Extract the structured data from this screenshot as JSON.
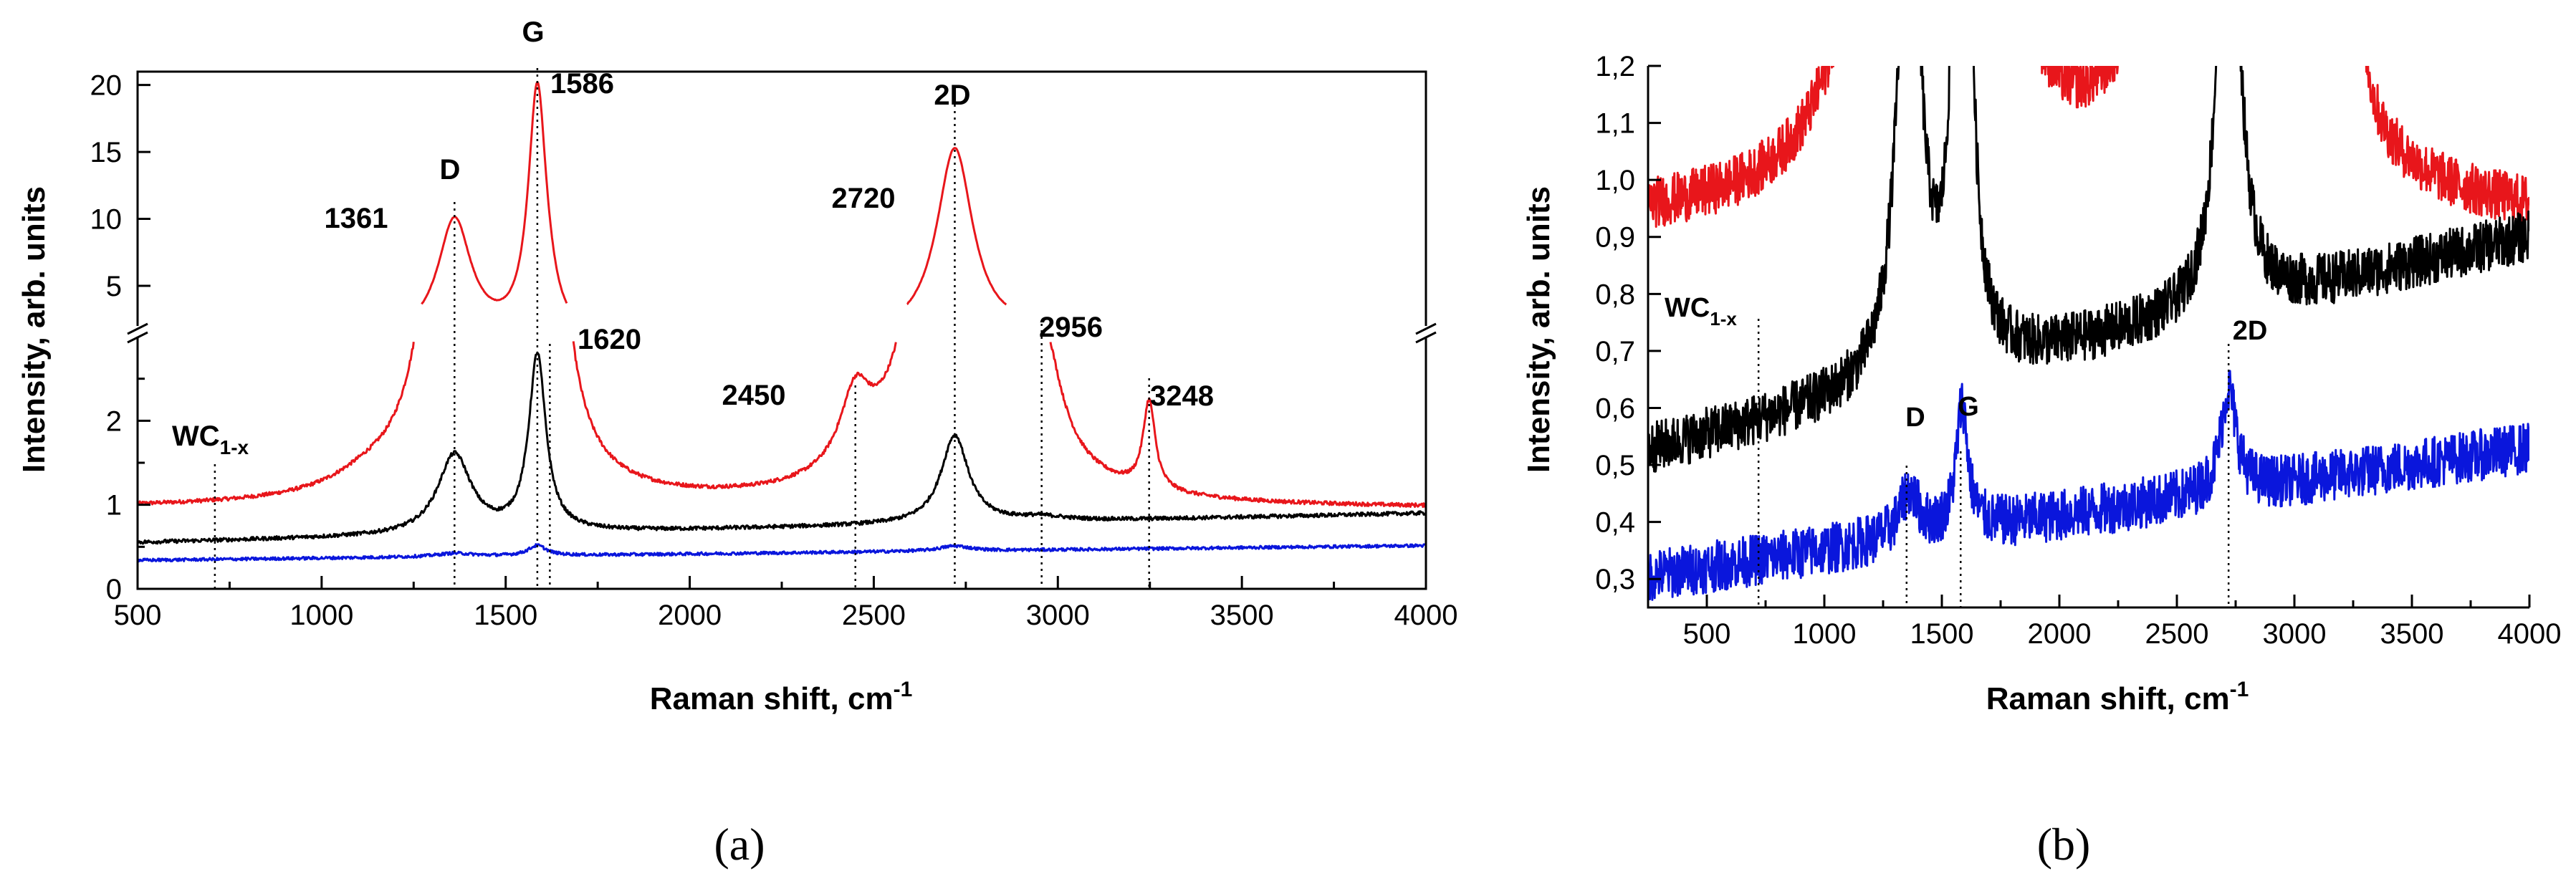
{
  "chart_data": [
    {
      "panel": "(a)",
      "type": "line",
      "xlabel": "Raman shift, cm",
      "xlabel_sup": "-1",
      "ylabel": "Intensity, arb. units",
      "xlim": [
        500,
        4000
      ],
      "xticks": [
        "500",
        "1000",
        "1500",
        "2000",
        "2500",
        "3000",
        "3500",
        "4000"
      ],
      "ylim_lower": [
        0,
        3
      ],
      "ylim_upper": [
        2,
        21
      ],
      "yticks_lower": [
        "0",
        "1",
        "2"
      ],
      "yticks_upper": [
        "5",
        "10",
        "15",
        "20"
      ],
      "axis_break": true,
      "series": [
        {
          "name": "red",
          "color": "#e8161b",
          "baseline": 0.95,
          "peaks": [
            [
              1120,
              0.15,
              120
            ],
            [
              1361,
              8.8,
              55
            ],
            [
              1586,
              18.5,
              30
            ],
            [
              1620,
              0.6,
              25
            ],
            [
              2450,
              0.85,
              50
            ],
            [
              2720,
              14.2,
              60
            ],
            [
              2956,
              1.45,
              60
            ],
            [
              3248,
              1.05,
              20
            ]
          ]
        },
        {
          "name": "black",
          "color": "#000000",
          "baseline": 0.55,
          "slope_per_1000": 0.1,
          "peaks": [
            [
              1361,
              0.95,
              55
            ],
            [
              1586,
              2.1,
              28
            ],
            [
              2720,
              1.05,
              45
            ],
            [
              2956,
              0.05,
              80
            ]
          ]
        },
        {
          "name": "blue",
          "color": "#0a16dc",
          "baseline": 0.34,
          "slope_per_1000": 0.05,
          "peaks": [
            [
              1361,
              0.04,
              60
            ],
            [
              1586,
              0.12,
              30
            ],
            [
              2720,
              0.06,
              50
            ]
          ]
        }
      ],
      "annotations": [
        {
          "label": "WC",
          "sub": "1-x",
          "x": 710
        },
        {
          "label": "1361",
          "x": 1361
        },
        {
          "label": "D",
          "x": 1361
        },
        {
          "label": "G",
          "x": 1586
        },
        {
          "label": "1586",
          "x": 1586
        },
        {
          "label": "1620",
          "x": 1620
        },
        {
          "label": "2450",
          "x": 2450
        },
        {
          "label": "2720",
          "x": 2720
        },
        {
          "label": "2D",
          "x": 2720
        },
        {
          "label": "2956",
          "x": 2956
        },
        {
          "label": "3248",
          "x": 3248
        }
      ]
    },
    {
      "panel": "(b)",
      "type": "line",
      "xlabel": "Raman shift, cm",
      "xlabel_sup": "-1",
      "ylabel": "Intensity, arb. units",
      "xlim": [
        250,
        4000
      ],
      "xticks": [
        "500",
        "1000",
        "1500",
        "2000",
        "2500",
        "3000",
        "3500",
        "4000"
      ],
      "ylim": [
        0.25,
        1.2
      ],
      "yticks": [
        "0,3",
        "0,4",
        "0,5",
        "0,6",
        "0,7",
        "0,8",
        "0,9",
        "1,0",
        "1,1",
        "1,2"
      ],
      "series": [
        {
          "name": "red",
          "color": "#e8161b",
          "baseline": 0.92,
          "peaks": [
            [
              1361,
              8.8,
              55
            ],
            [
              1586,
              18.5,
              30
            ],
            [
              2720,
              14.2,
              60
            ],
            [
              2956,
              1.4,
              60
            ],
            [
              3248,
              1.0,
              20
            ]
          ]
        },
        {
          "name": "black",
          "color": "#000000",
          "baseline": 0.55,
          "slope_per_1000": 0.1,
          "peaks": [
            [
              1361,
              0.95,
              55
            ],
            [
              1586,
              2.1,
              28
            ],
            [
              2720,
              1.05,
              45
            ]
          ]
        },
        {
          "name": "blue",
          "color": "#0a16dc",
          "baseline": 0.32,
          "slope_per_1000": 0.06,
          "peaks": [
            [
              1361,
              0.08,
              50
            ],
            [
              1586,
              0.22,
              30
            ],
            [
              2720,
              0.18,
              40
            ]
          ]
        }
      ],
      "annotations": [
        {
          "label": "WC",
          "sub": "1-x",
          "x": 720
        },
        {
          "label": "D",
          "x": 1350
        },
        {
          "label": "G",
          "x": 1580
        },
        {
          "label": "2D",
          "x": 2720
        }
      ]
    }
  ],
  "captions": {
    "a": "(a)",
    "b": "(b)"
  }
}
